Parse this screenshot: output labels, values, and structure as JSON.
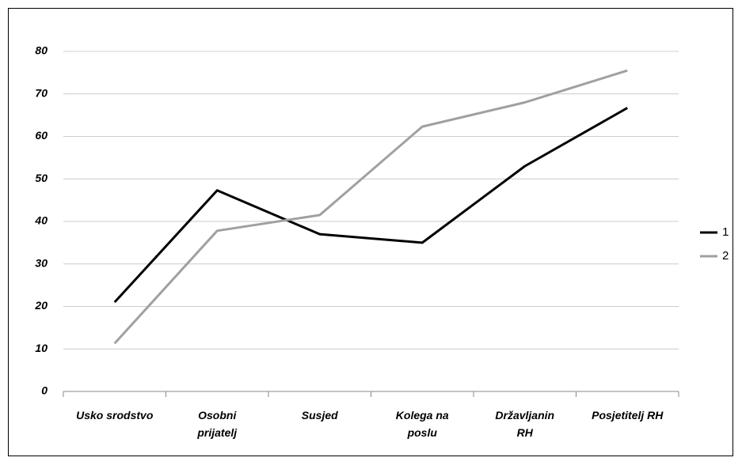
{
  "chart_data": {
    "type": "line",
    "categories": [
      "Usko srodstvo",
      "Osobni\nprijatelj",
      "Susjed",
      "Kolega na\nposlu",
      "Državljanin\nRH",
      "Posjetitelj RH"
    ],
    "series": [
      {
        "name": "1",
        "color": "#000000",
        "values": [
          21,
          47.3,
          37,
          35,
          53,
          66.7
        ]
      },
      {
        "name": "2",
        "color": "#a0a0a0",
        "values": [
          11.3,
          37.8,
          41.5,
          62.3,
          68,
          75.5
        ]
      }
    ],
    "ylim": [
      0,
      80
    ],
    "yticks": [
      0,
      10,
      20,
      30,
      40,
      50,
      60,
      70,
      80
    ],
    "grid": true,
    "legend": "right"
  }
}
